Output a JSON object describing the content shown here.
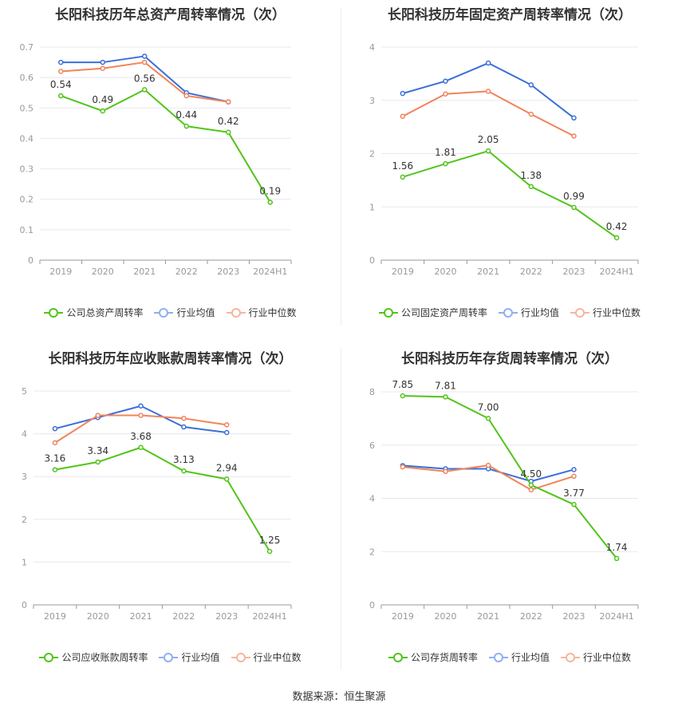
{
  "colors": {
    "company": "#52c41a",
    "avg": "#3b6fd8",
    "median": "#f0845a",
    "grid": "#e8e8f0",
    "axis": "#999999",
    "tick": "#999999"
  },
  "source_label": "数据来源：恒生聚源",
  "chart_data": [
    {
      "type": "line",
      "title": "长阳科技历年总资产周转率情况（次）",
      "categories": [
        "2019",
        "2020",
        "2021",
        "2022",
        "2023",
        "2024H1"
      ],
      "ylim": [
        0,
        0.7
      ],
      "yticks": [
        "0",
        "0.1",
        "0.2",
        "0.3",
        "0.4",
        "0.5",
        "0.6",
        "0.7"
      ],
      "series": [
        {
          "name": "公司总资产周转率",
          "key": "company",
          "values": [
            0.54,
            0.49,
            0.56,
            0.44,
            0.42,
            0.19
          ],
          "labels": [
            "0.54",
            "0.49",
            "0.56",
            "0.44",
            "0.42",
            "0.19"
          ]
        },
        {
          "name": "行业均值",
          "key": "avg",
          "values": [
            0.65,
            0.65,
            0.67,
            0.55,
            0.52,
            null
          ]
        },
        {
          "name": "行业中位数",
          "key": "median",
          "values": [
            0.62,
            0.63,
            0.65,
            0.54,
            0.52,
            null
          ]
        }
      ]
    },
    {
      "type": "line",
      "title": "长阳科技历年固定资产周转率情况（次）",
      "categories": [
        "2019",
        "2020",
        "2021",
        "2022",
        "2023",
        "2024H1"
      ],
      "ylim": [
        0,
        4
      ],
      "yticks": [
        "0",
        "1",
        "2",
        "3",
        "4"
      ],
      "series": [
        {
          "name": "公司固定资产周转率",
          "key": "company",
          "values": [
            1.56,
            1.81,
            2.05,
            1.38,
            0.99,
            0.42
          ],
          "labels": [
            "1.56",
            "1.81",
            "2.05",
            "1.38",
            "0.99",
            "0.42"
          ]
        },
        {
          "name": "行业均值",
          "key": "avg",
          "values": [
            3.13,
            3.36,
            3.7,
            3.29,
            2.67,
            null
          ]
        },
        {
          "name": "行业中位数",
          "key": "median",
          "values": [
            2.7,
            3.12,
            3.17,
            2.74,
            2.33,
            null
          ]
        }
      ]
    },
    {
      "type": "line",
      "title": "长阳科技历年应收账款周转率情况（次）",
      "categories": [
        "2019",
        "2020",
        "2021",
        "2022",
        "2023",
        "2024H1"
      ],
      "ylim": [
        0,
        5
      ],
      "yticks": [
        "0",
        "1",
        "2",
        "3",
        "4",
        "5"
      ],
      "series": [
        {
          "name": "公司应收账款周转率",
          "key": "company",
          "values": [
            3.16,
            3.34,
            3.68,
            3.13,
            2.94,
            1.25
          ],
          "labels": [
            "3.16",
            "3.34",
            "3.68",
            "3.13",
            "2.94",
            "1.25"
          ]
        },
        {
          "name": "行业均值",
          "key": "avg",
          "values": [
            4.12,
            4.38,
            4.65,
            4.16,
            4.03,
            null
          ]
        },
        {
          "name": "行业中位数",
          "key": "median",
          "values": [
            3.79,
            4.43,
            4.43,
            4.36,
            4.21,
            null
          ]
        }
      ]
    },
    {
      "type": "line",
      "title": "长阳科技历年存货周转率情况（次）",
      "categories": [
        "2019",
        "2020",
        "2021",
        "2022",
        "2023",
        "2024H1"
      ],
      "ylim": [
        0,
        8
      ],
      "yticks": [
        "0",
        "2",
        "4",
        "6",
        "8"
      ],
      "series": [
        {
          "name": "公司存货周转率",
          "key": "company",
          "values": [
            7.85,
            7.81,
            7.0,
            4.5,
            3.77,
            1.74
          ],
          "labels": [
            "7.85",
            "7.81",
            "7.00",
            "4.50",
            "3.77",
            "1.74"
          ]
        },
        {
          "name": "行业均值",
          "key": "avg",
          "values": [
            5.23,
            5.11,
            5.11,
            4.64,
            5.08,
            null
          ]
        },
        {
          "name": "行业中位数",
          "key": "median",
          "values": [
            5.18,
            5.01,
            5.24,
            4.32,
            4.83,
            null
          ]
        }
      ]
    }
  ]
}
